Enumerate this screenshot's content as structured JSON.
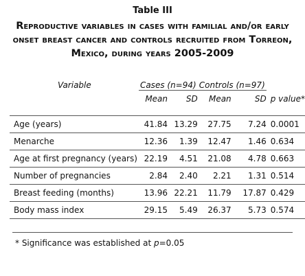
{
  "table_number": "Table III",
  "caption": "Reproductive variables in cases with familial and/or early onset breast cancer and controls recruited from Torreon, Mexico, during years 2005-2009",
  "table": {
    "variable_header": "Variable",
    "groups": [
      "Cases (n=94)",
      "Controls (n=97)"
    ],
    "subheaders": [
      "Mean",
      "SD",
      "Mean",
      "SD",
      "p value*"
    ],
    "rows": [
      [
        "Age (years)",
        "41.84",
        "13.29",
        "27.75",
        "7.24",
        "0.0001"
      ],
      [
        "Menarche",
        "12.36",
        "1.39",
        "12.47",
        "1.46",
        "0.634"
      ],
      [
        "Age at first pregnancy (years)",
        "22.19",
        "4.51",
        "21.08",
        "4.78",
        "0.663"
      ],
      [
        "Number of pregnancies",
        "2.84",
        "2.40",
        "2.21",
        "1.31",
        "0.514"
      ],
      [
        "Breast feeding (months)",
        "13.96",
        "22.21",
        "11.79",
        "17.87",
        "0.429"
      ],
      [
        "Body mass index",
        "29.15",
        "5.49",
        "26.37",
        "5.73",
        "0.574"
      ]
    ]
  },
  "footnote": {
    "before": "* Significance was established at ",
    "italic": "p",
    "after": "=0.05"
  }
}
